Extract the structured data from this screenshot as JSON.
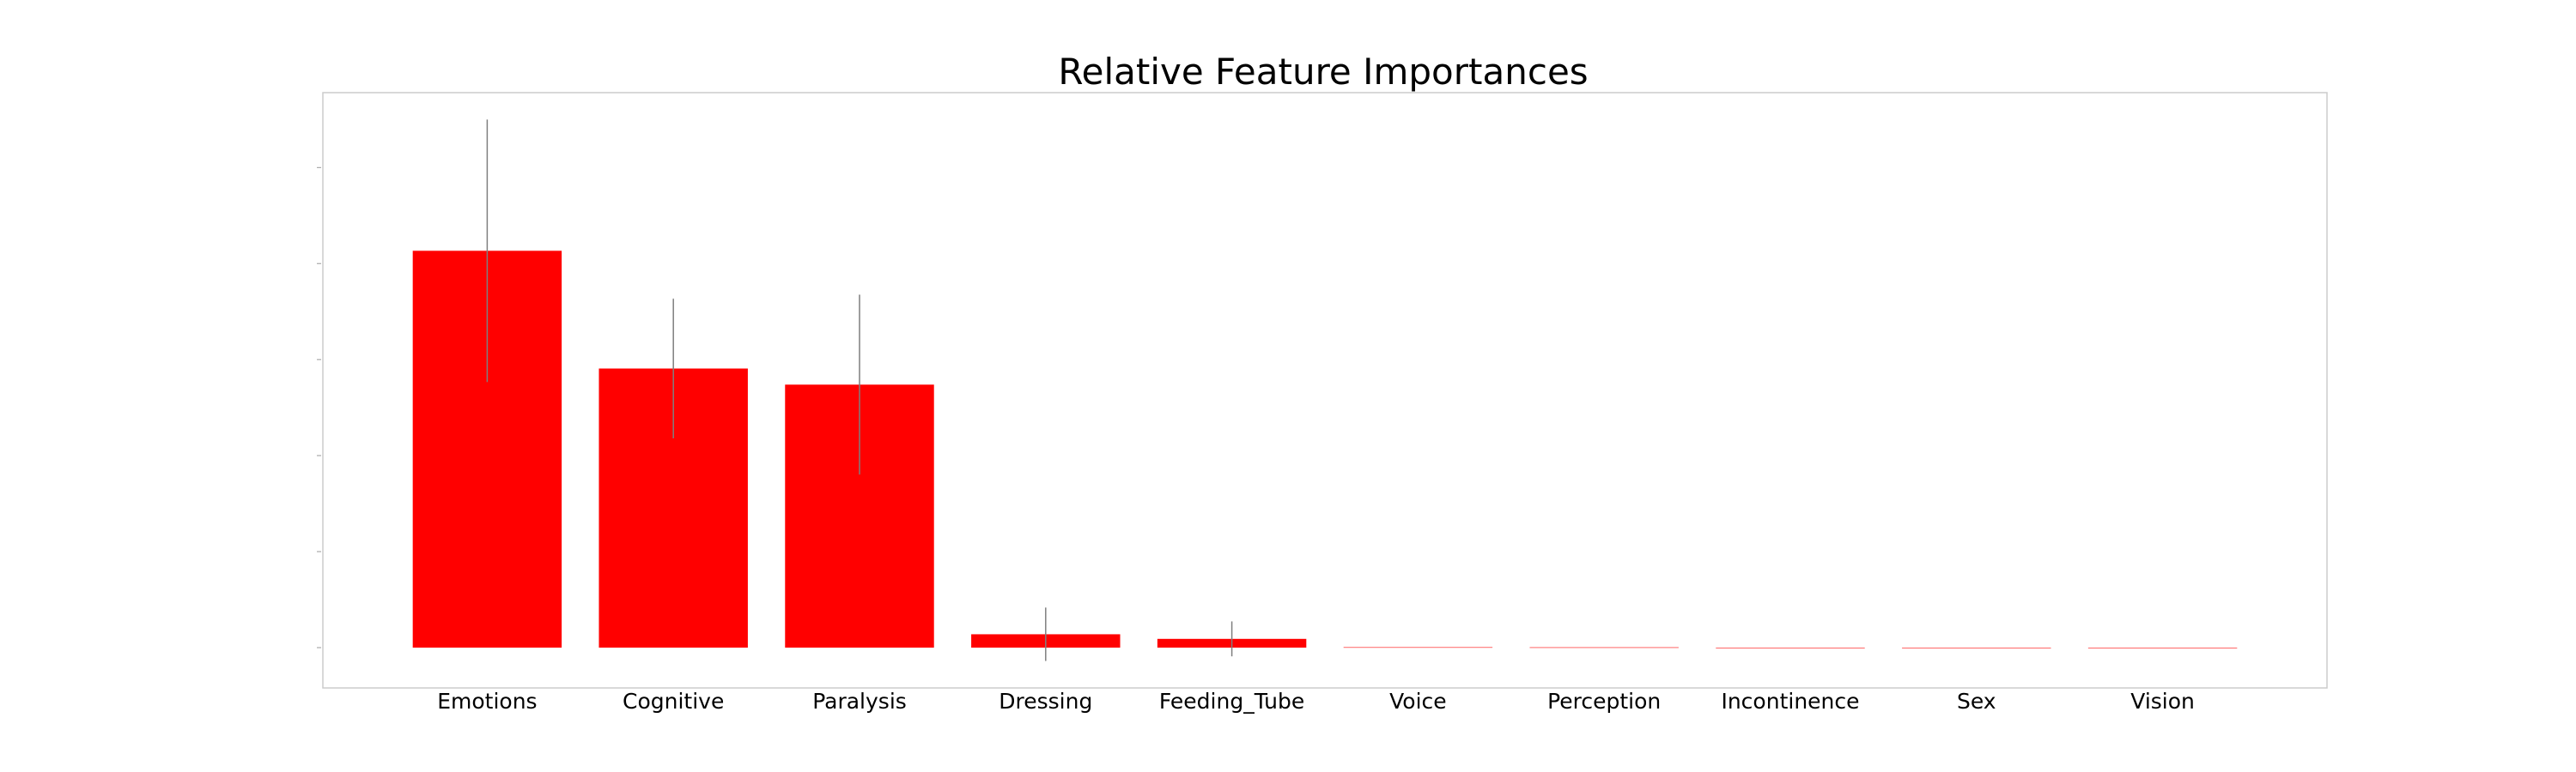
{
  "chart_data": {
    "type": "bar",
    "title": "Relative Feature Importances",
    "xlabel": "",
    "ylabel": "",
    "categories": [
      "Emotions",
      "Cognitive",
      "Paralysis",
      "Dressing",
      "Feeding_Tube",
      "Voice",
      "Perception",
      "Incontinence",
      "Sex",
      "Vision"
    ],
    "values": [
      0.4133,
      0.2907,
      0.2739,
      0.0139,
      0.0091,
      0.0004,
      0.0003,
      0.0,
      0.0,
      0.0
    ],
    "errors": [
      0.1367,
      0.0727,
      0.0937,
      0.0278,
      0.0182,
      0.0,
      0.0,
      0.0,
      0.0,
      0.0
    ],
    "ylim": [
      -0.042,
      0.578
    ],
    "y_ticks": [
      0.0,
      0.1,
      0.2,
      0.3,
      0.4,
      0.5
    ],
    "y_tick_labels_visible": false,
    "grid": false,
    "colors": {
      "bar": "#ff0000",
      "error_bar": "#7f7f7f",
      "frame": "#cccccc"
    }
  }
}
